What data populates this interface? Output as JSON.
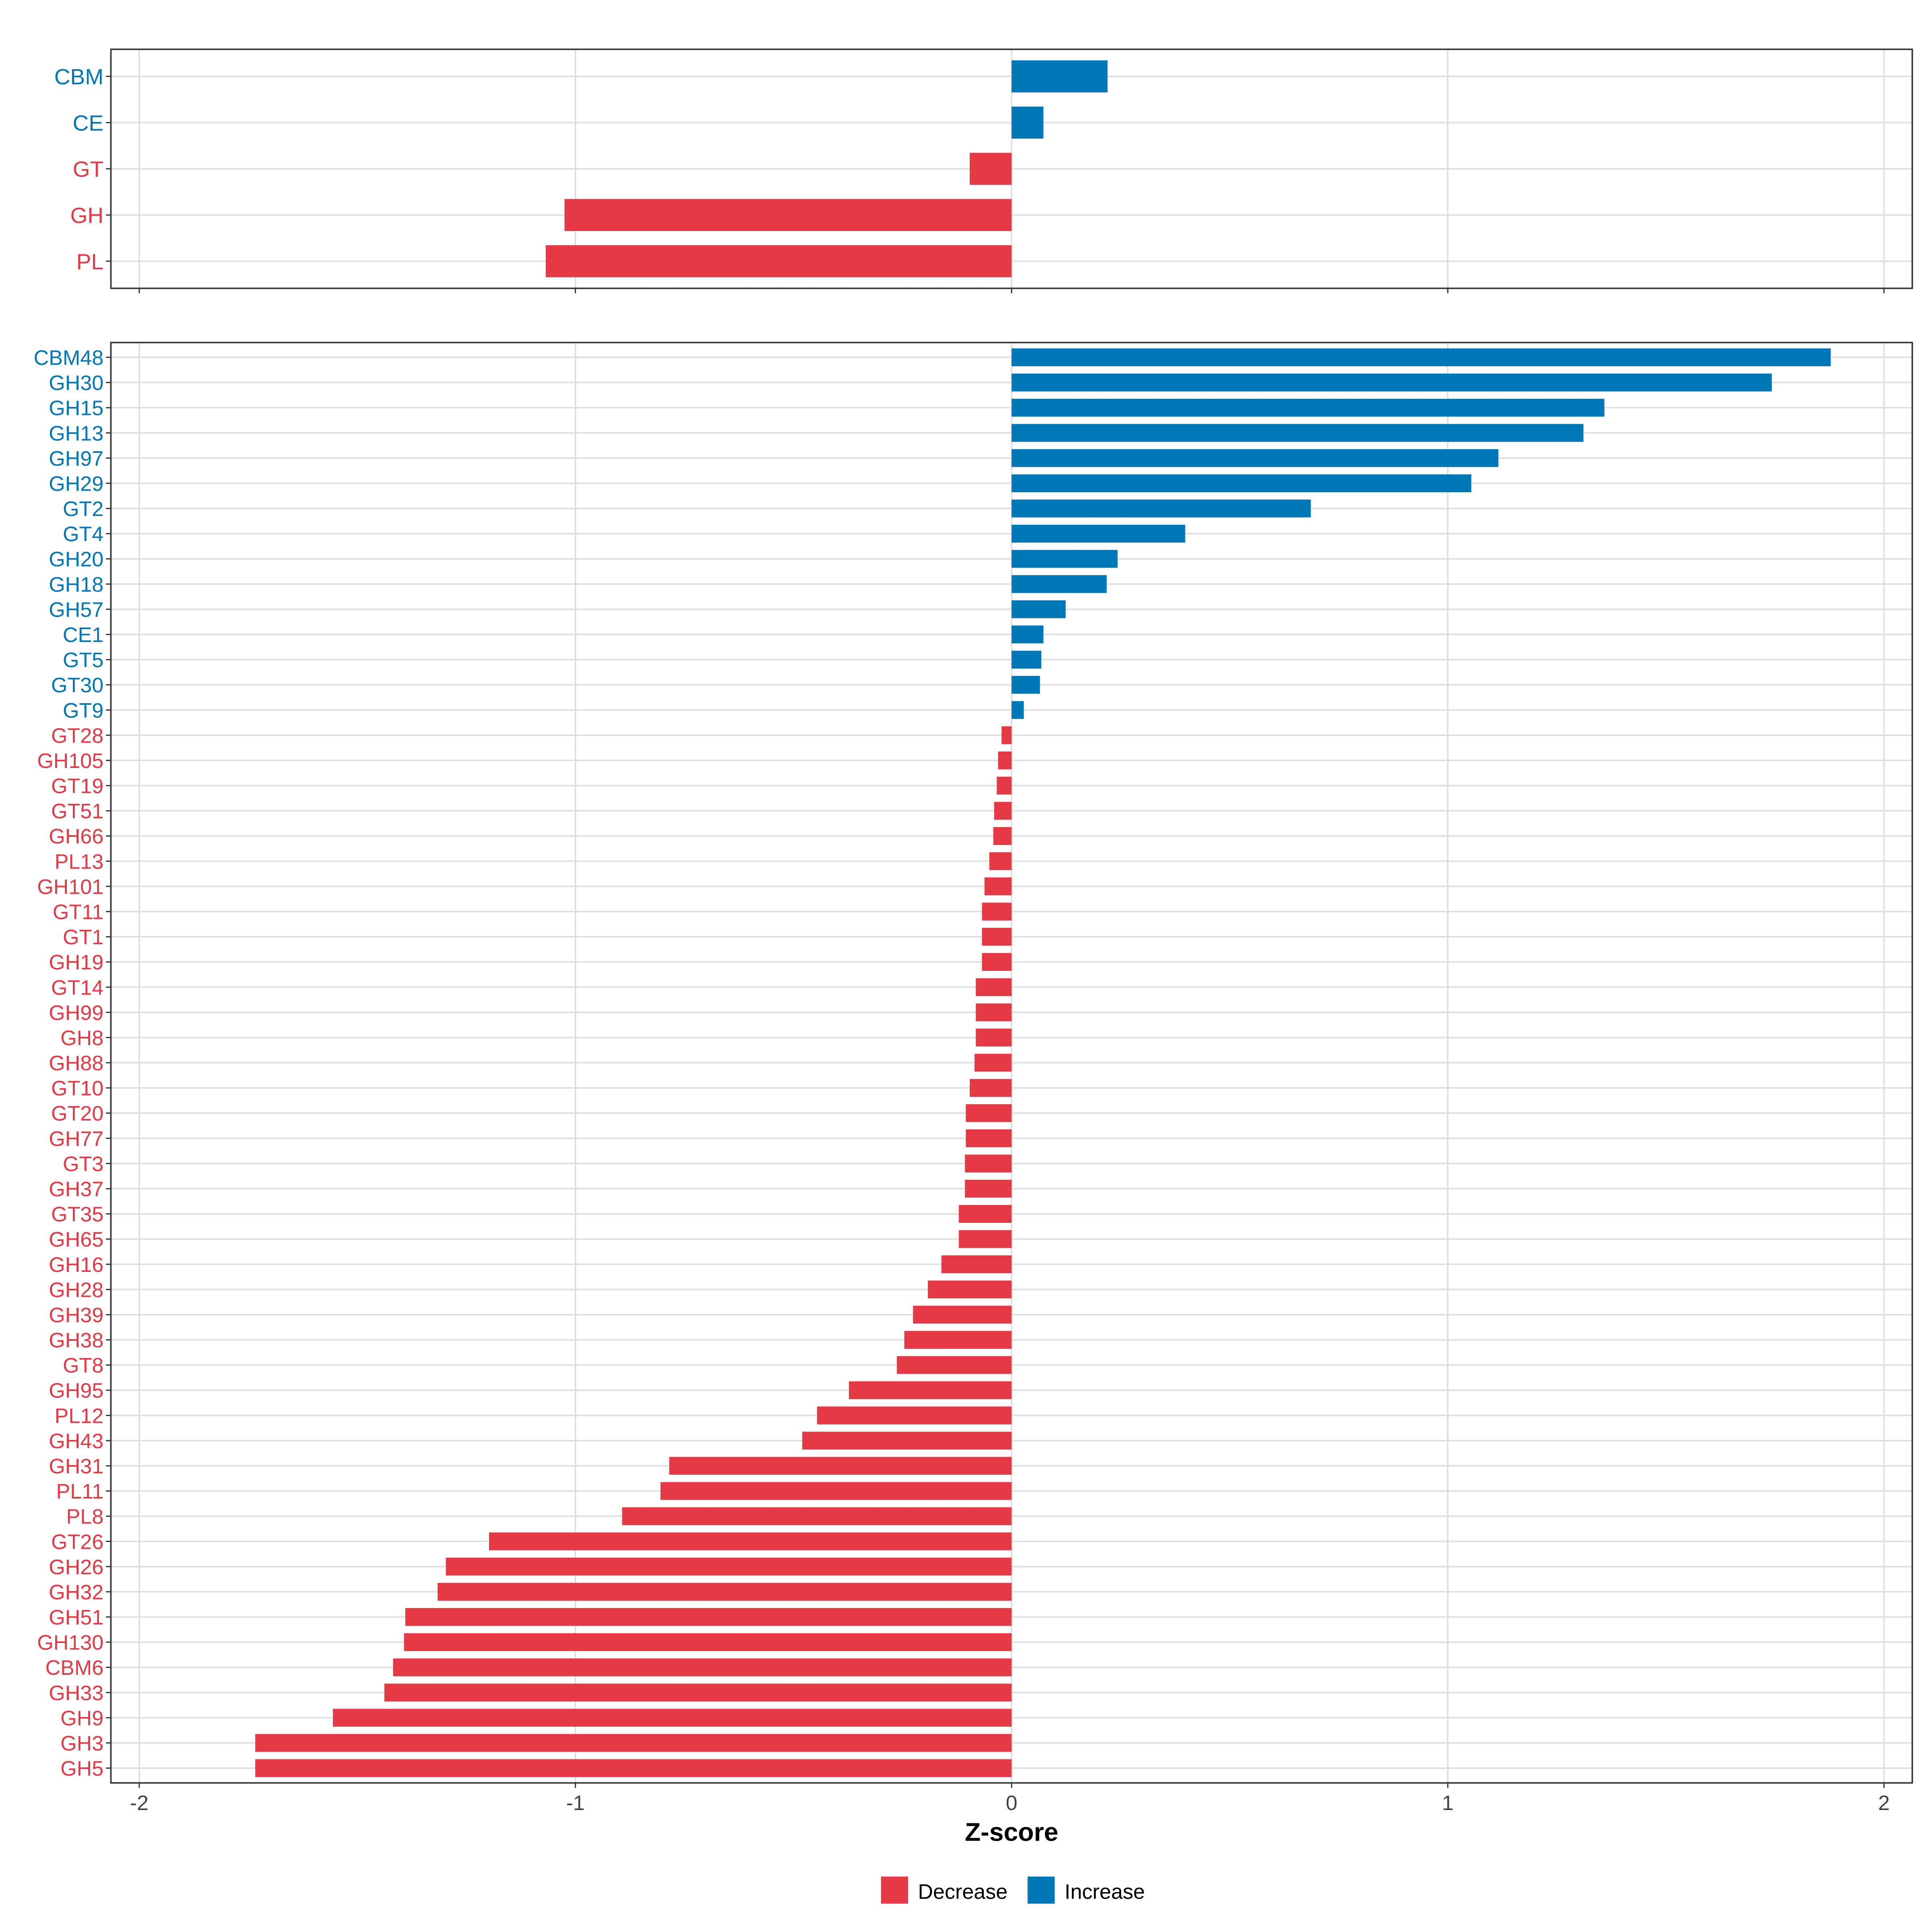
{
  "chart_data": [
    {
      "type": "bar",
      "orientation": "horizontal",
      "panel": "top",
      "categories": [
        "CBM",
        "CE",
        "GT",
        "GH",
        "PL"
      ],
      "values": [
        0.22,
        0.073,
        -0.096,
        -1.025,
        -1.068
      ]
    },
    {
      "type": "bar",
      "orientation": "horizontal",
      "panel": "bottom",
      "categories": [
        "CBM48",
        "GH30",
        "GH15",
        "GH13",
        "GH97",
        "GH29",
        "GT2",
        "GT4",
        "GH20",
        "GH18",
        "GH57",
        "CE1",
        "GT5",
        "GT30",
        "GT9",
        "GT28",
        "GH105",
        "GT19",
        "GT51",
        "GH66",
        "PL13",
        "GH101",
        "GT11",
        "GT1",
        "GH19",
        "GT14",
        "GH99",
        "GH8",
        "GH88",
        "GT10",
        "GT20",
        "GH77",
        "GT3",
        "GH37",
        "GT35",
        "GH65",
        "GH16",
        "GH28",
        "GH39",
        "GH38",
        "GT8",
        "GH95",
        "PL12",
        "GH43",
        "GH31",
        "PL11",
        "PL8",
        "GT26",
        "GH26",
        "GH32",
        "GH51",
        "GH130",
        "CBM6",
        "GH33",
        "GH9",
        "GH3",
        "GH5"
      ],
      "values": [
        1.878,
        1.743,
        1.359,
        1.311,
        1.116,
        1.054,
        0.686,
        0.398,
        0.243,
        0.218,
        0.124,
        0.073,
        0.068,
        0.065,
        0.028,
        -0.023,
        -0.031,
        -0.034,
        -0.04,
        -0.042,
        -0.051,
        -0.062,
        -0.068,
        -0.068,
        -0.068,
        -0.082,
        -0.082,
        -0.082,
        -0.085,
        -0.096,
        -0.105,
        -0.105,
        -0.107,
        -0.107,
        -0.121,
        -0.121,
        -0.161,
        -0.192,
        -0.226,
        -0.246,
        -0.263,
        -0.373,
        -0.446,
        -0.48,
        -0.785,
        -0.805,
        -0.893,
        -1.198,
        -1.297,
        -1.316,
        -1.39,
        -1.393,
        -1.418,
        -1.438,
        -1.556,
        -1.734,
        -1.734
      ]
    }
  ],
  "axis": {
    "xlabel": "Z-score",
    "xlim": [
      -2.06,
      2.06
    ],
    "ticks": [
      -2,
      -1,
      0,
      1,
      2
    ],
    "tick_labels": [
      "-2",
      "-1",
      "0",
      "1",
      "2"
    ],
    "grid": true
  },
  "legend": {
    "position": "bottom",
    "items": [
      {
        "label": "Decrease",
        "color": "#E63946"
      },
      {
        "label": "Increase",
        "color": "#0077B6"
      }
    ]
  },
  "colors": {
    "decrease": "#E63946",
    "increase": "#0077B6",
    "grid": "#DEDEDE",
    "frame": "#333333"
  }
}
